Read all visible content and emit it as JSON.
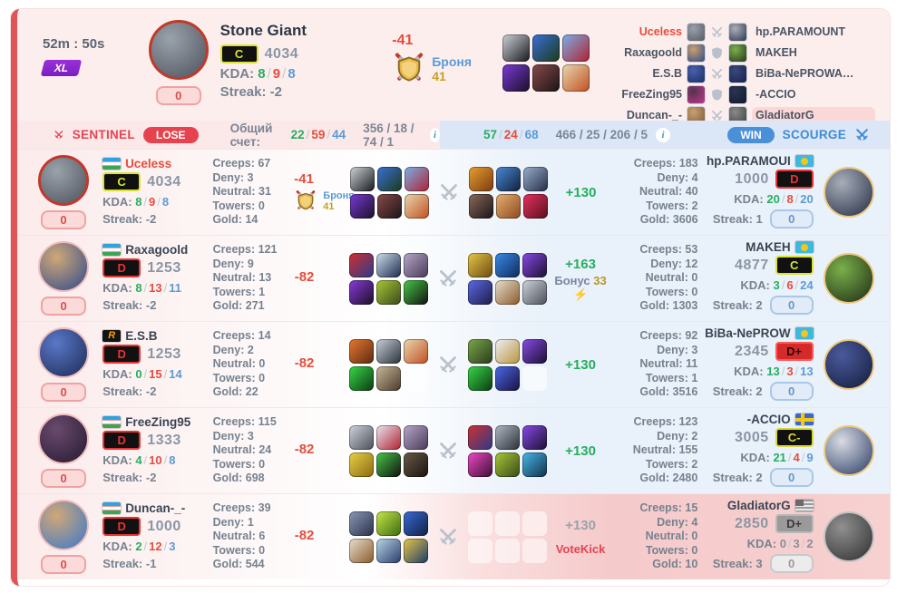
{
  "labels": {
    "kda": "KDA:",
    "streak": "Streak:",
    "creeps": "Creeps:",
    "deny": "Deny:",
    "neutral": "Neutral:",
    "towers": "Towers:",
    "gold": "Gold:"
  },
  "colors": {
    "accent_red": "#e74c3c",
    "accent_green": "#27ae60",
    "accent_blue": "#4a90d9",
    "sentinel": "#e7434f",
    "scourge": "#3d8ad8"
  },
  "header": {
    "time": "52m : 50s",
    "league_badge": "XL",
    "hero": {
      "name": "Stone Giant",
      "rank": "C",
      "rating": "4034",
      "kills": "8",
      "deaths": "9",
      "assists": "8",
      "streak": "-2",
      "level": "0",
      "avatar": {
        "g": [
          "#9aa2ac",
          "#4d535c"
        ],
        "ring": "#c0392b",
        "rw": 3
      }
    },
    "armor": {
      "delta": "-41",
      "label": "Броня",
      "value": "41"
    },
    "items": [
      [
        "#cfd3d8",
        "#16181c"
      ],
      [
        "#3a6fd8",
        "#1a3a1a"
      ],
      [
        "#7ab0e8",
        "#b02030"
      ],
      [
        "#7a3ad8",
        "#1a1026"
      ],
      [
        "#8a4a4a",
        "#1a1416"
      ],
      [
        "#e8d8b0",
        "#c05020"
      ]
    ],
    "matchups": [
      {
        "left": "Uceless",
        "left_me": true,
        "right": "hp.PARAMOUNT",
        "vs": "swords",
        "highlight": false,
        "left_av": [
          "#9aa0aa",
          "#555a63"
        ],
        "right_av": [
          "#aab0b8",
          "#2c3550"
        ]
      },
      {
        "left": "Raxagoold",
        "right": "MAKEH",
        "vs": "shield",
        "highlight": false,
        "left_av": [
          "#c9a070",
          "#2e4a8a"
        ],
        "right_av": [
          "#7ab04a",
          "#27351d"
        ]
      },
      {
        "left": "E.S.B",
        "right": "BiBa-NePROWA…",
        "vs": "swords",
        "highlight": false,
        "left_av": [
          "#4a5fae",
          "#1b2f63"
        ],
        "right_av": [
          "#3a4a7c",
          "#16204a"
        ]
      },
      {
        "left": "FreeZing95",
        "right": "-ACCIO",
        "vs": "shield",
        "highlight": false,
        "left_av": [
          "#52324e",
          "#c0398c"
        ],
        "right_av": [
          "#2a3550",
          "#10182e"
        ]
      },
      {
        "left": "Duncan-_-",
        "right": "GladiatorG",
        "vs": "swords",
        "highlight": true,
        "left_av": [
          "#c9a070",
          "#7a5a3a"
        ],
        "right_av": [
          "#8a8a8a",
          "#3e3e3e"
        ]
      }
    ]
  },
  "scorebar": {
    "left": {
      "team": "SENTINEL",
      "result": "LOSE",
      "score_label": "Общий счет:",
      "kills": "22",
      "deaths": "59",
      "assists": "44",
      "extra": "356 / 18 / 74 / 1"
    },
    "right": {
      "kills": "57",
      "deaths": "24",
      "assists": "68",
      "extra": "466 / 25 / 206 / 5",
      "result": "WIN",
      "team": "SCOURGE"
    }
  },
  "rows": [
    {
      "left": {
        "name": "Uceless",
        "is_me": true,
        "flag": "uz",
        "rank": "C",
        "rating": "4034",
        "kills": "8",
        "deaths": "9",
        "assists": "8",
        "streak": "-2",
        "level": "0",
        "avatar": {
          "g": [
            "#9aa2ac",
            "#4d535c"
          ],
          "ring": "#c0392b",
          "rw": 3
        },
        "stats": {
          "creeps": "67",
          "deny": "3",
          "neutral": "31",
          "towers": "0",
          "gold": "14"
        }
      },
      "armor": {
        "delta": "-41",
        "label": "Броня",
        "value": "41"
      },
      "items_left": [
        [
          "#cfd3d8",
          "#16181c"
        ],
        [
          "#3a6fd8",
          "#1a3a1a"
        ],
        [
          "#7ab0e8",
          "#b02030"
        ],
        [
          "#7a3ad8",
          "#1a1026"
        ],
        [
          "#8a4a4a",
          "#1a1416"
        ],
        [
          "#e8d8b0",
          "#c05020"
        ]
      ],
      "items_right": [
        [
          "#e8a030",
          "#7a3a10"
        ],
        [
          "#4a8ad8",
          "#10203a"
        ],
        [
          "#9ab0cc",
          "#242c48"
        ],
        [
          "#8a6a5a",
          "#1a1416"
        ],
        [
          "#e8b070",
          "#8a4a20"
        ],
        [
          "#e83060",
          "#58101c"
        ]
      ],
      "bonus": {
        "value": "+130"
      },
      "right": {
        "name": "hp.PARAMOUI",
        "flag": "kz",
        "rank": "D",
        "rating": "1000",
        "kills": "20",
        "deaths": "8",
        "assists": "20",
        "streak": "1",
        "level": "0",
        "avatar": {
          "g": [
            "#a8aeb8",
            "#232c44"
          ],
          "ring": "#ecc87e"
        },
        "stats": {
          "creeps": "183",
          "deny": "4",
          "neutral": "40",
          "towers": "2",
          "gold": "3606"
        }
      }
    },
    {
      "left": {
        "name": "Raxagoold",
        "flag": "uz",
        "rank": "D",
        "rating": "1253",
        "kills": "8",
        "deaths": "13",
        "assists": "11",
        "streak": "-2",
        "level": "0",
        "avatar": {
          "g": [
            "#d0a878",
            "#2e4a8c"
          ],
          "ring": "#f0bcbc"
        },
        "stats": {
          "creeps": "121",
          "deny": "9",
          "neutral": "13",
          "towers": "1",
          "gold": "271"
        }
      },
      "armor": {
        "delta": "-82"
      },
      "items_left": [
        [
          "#d03030",
          "#2a3a8a"
        ],
        [
          "#cfe0f0",
          "#1a2a4a"
        ],
        [
          "#b8a8c8",
          "#4a3a5a"
        ],
        [
          "#8a3ad8",
          "#1a1026"
        ],
        [
          "#a8c838",
          "#3a4a18"
        ],
        [
          "#48c848",
          "#101010"
        ]
      ],
      "items_right": [
        [
          "#e8c848",
          "#6a4a10"
        ],
        [
          "#3a8ae8",
          "#102a5a"
        ],
        [
          "#8a4ae8",
          "#1a1030"
        ],
        [
          "#5a6ae8",
          "#201a44"
        ],
        [
          "#e8e0d0",
          "#8a5a2a"
        ],
        [
          "#d0d4dc",
          "#4a4e58"
        ]
      ],
      "bonus": {
        "value": "+163",
        "label": "Бонус",
        "amount": "33"
      },
      "right": {
        "name": "MAKEH",
        "flag": "kz",
        "rank": "C",
        "rating": "4877",
        "kills": "3",
        "deaths": "6",
        "assists": "24",
        "streak": "2",
        "level": "0",
        "avatar": {
          "g": [
            "#7ab04a",
            "#1e2a16"
          ],
          "ring": "#ecc87e"
        },
        "stats": {
          "creeps": "53",
          "deny": "12",
          "neutral": "0",
          "towers": "0",
          "gold": "1303"
        }
      }
    },
    {
      "left": {
        "name": "E.S.B",
        "flag": "r-logo",
        "rank": "D",
        "rating": "1253",
        "kills": "0",
        "deaths": "15",
        "assists": "14",
        "streak": "-2",
        "level": "0",
        "avatar": {
          "g": [
            "#5a78c8",
            "#1c2a55"
          ],
          "ring": "#f0bcbc"
        },
        "stats": {
          "creeps": "14",
          "deny": "2",
          "neutral": "0",
          "towers": "0",
          "gold": "22"
        }
      },
      "armor": {
        "delta": "-82"
      },
      "items_left": [
        [
          "#e87830",
          "#5a2a10"
        ],
        [
          "#c8d0da",
          "#2a3038"
        ],
        [
          "#e8d8b0",
          "#c05020"
        ],
        [
          "#38d848",
          "#0a3a10"
        ],
        [
          "#c8b89a",
          "#4a3a2a"
        ],
        null
      ],
      "items_right": [
        [
          "#7aa84a",
          "#2a3a1a"
        ],
        [
          "#f0f0f8",
          "#b8943a"
        ],
        [
          "#8a4ae8",
          "#1a1030"
        ],
        [
          "#38d848",
          "#0a3a10"
        ],
        [
          "#4a6ae8",
          "#1a1040"
        ],
        null
      ],
      "bonus": {
        "value": "+130"
      },
      "right": {
        "name": "BiBa-NePROW",
        "flag": "kz",
        "rank": "D+",
        "rating": "2345",
        "kills": "13",
        "deaths": "3",
        "assists": "13",
        "streak": "2",
        "level": "0",
        "avatar": {
          "g": [
            "#4a5a9c",
            "#131c3a"
          ],
          "ring": "#ecc87e"
        },
        "stats": {
          "creeps": "92",
          "deny": "3",
          "neutral": "11",
          "towers": "1",
          "gold": "3516"
        }
      }
    },
    {
      "left": {
        "name": "FreeZing95",
        "flag": "uz",
        "rank": "D",
        "rating": "1333",
        "kills": "4",
        "deaths": "10",
        "assists": "8",
        "streak": "-2",
        "level": "0",
        "avatar": {
          "g": [
            "#6a4a6e",
            "#241a30"
          ],
          "ring": "#f0bcbc"
        },
        "stats": {
          "creeps": "115",
          "deny": "3",
          "neutral": "24",
          "towers": "0",
          "gold": "698"
        }
      },
      "armor": {
        "delta": "-82"
      },
      "items_left": [
        [
          "#d0d4dc",
          "#4a4e58"
        ],
        [
          "#e8e8f0",
          "#b02030"
        ],
        [
          "#b8a8c8",
          "#4a3a5a"
        ],
        [
          "#e8d048",
          "#8a6a10"
        ],
        [
          "#48c848",
          "#101010"
        ],
        [
          "#6a5a4a",
          "#1a140e"
        ]
      ],
      "items_right": [
        [
          "#d03030",
          "#2a3a8a"
        ],
        [
          "#b0b8c4",
          "#2a3038"
        ],
        [
          "#8a4ae8",
          "#1a1030"
        ],
        [
          "#f048c8",
          "#3a1030"
        ],
        [
          "#a8c838",
          "#3a4a18"
        ],
        [
          "#48b8e8",
          "#103048"
        ]
      ],
      "bonus": {
        "value": "+130"
      },
      "right": {
        "name": "-ACCIO",
        "flag": "se",
        "rank": "C-",
        "rating": "3005",
        "kills": "21",
        "deaths": "4",
        "assists": "9",
        "streak": "2",
        "level": "0",
        "avatar": {
          "g": [
            "#d8dce2",
            "#2a3a66"
          ],
          "ring": "#ecc87e"
        },
        "stats": {
          "creeps": "123",
          "deny": "2",
          "neutral": "155",
          "towers": "2",
          "gold": "2480"
        }
      }
    },
    {
      "afk": true,
      "left": {
        "name": "Duncan-_-",
        "flag": "uz",
        "rank": "D",
        "rating": "1000",
        "kills": "2",
        "deaths": "12",
        "assists": "3",
        "streak": "-1",
        "level": "0",
        "avatar": {
          "g": [
            "#d0a878",
            "#3a78c9"
          ],
          "ring": "#f0bcbc"
        },
        "stats": {
          "creeps": "39",
          "deny": "1",
          "neutral": "6",
          "towers": "0",
          "gold": "544"
        }
      },
      "armor": {
        "delta": "-82"
      },
      "items_left": [
        [
          "#8a9ab8",
          "#2a3048"
        ],
        [
          "#c8e848",
          "#3a6a10"
        ],
        [
          "#3a6ad8",
          "#102040"
        ],
        [
          "#e8e0d0",
          "#8a5a2a"
        ],
        [
          "#b8d8e8",
          "#2a3a6a"
        ],
        [
          "#e8c848",
          "#1a3a6a"
        ]
      ],
      "items_right": [
        null,
        null,
        null,
        null,
        null,
        null
      ],
      "bonus": {
        "value": "+130",
        "votekick": "VoteKick"
      },
      "right": {
        "name": "GladiatorG",
        "flag": "us-gray",
        "rank": "D+",
        "rating": "2850",
        "kills": "0",
        "deaths": "3",
        "assists": "2",
        "streak": "3",
        "level": "0",
        "avatar": {
          "g": [
            "#909090",
            "#2e2e2e"
          ],
          "ring": "#c4c4c4"
        },
        "stats": {
          "creeps": "15",
          "deny": "4",
          "neutral": "0",
          "towers": "0",
          "gold": "10"
        }
      }
    }
  ]
}
